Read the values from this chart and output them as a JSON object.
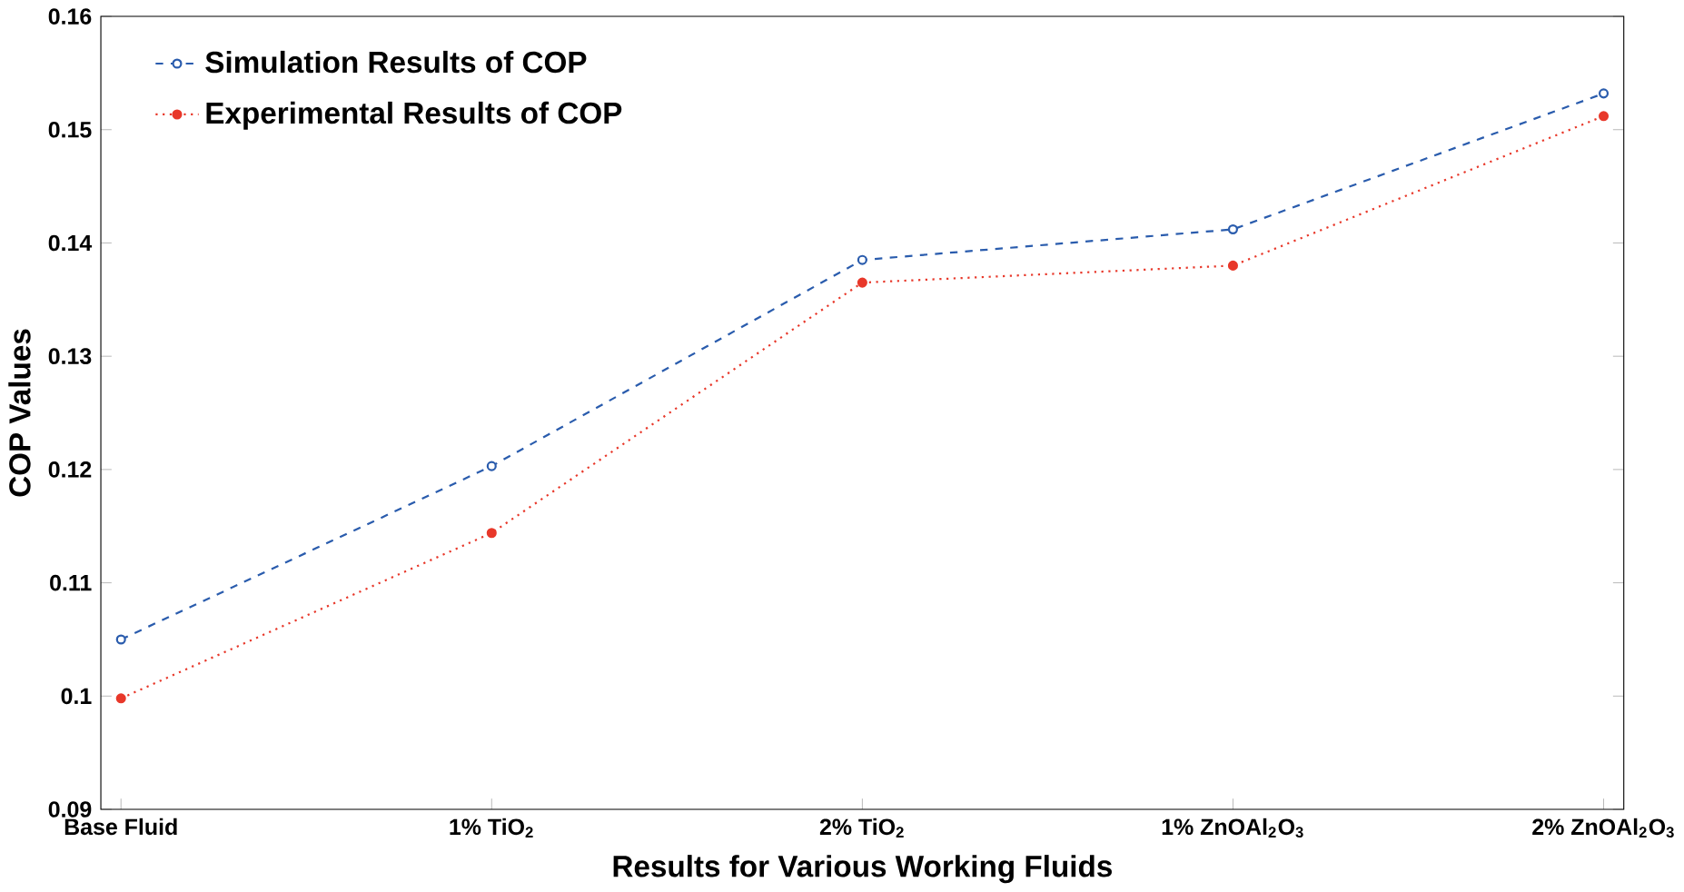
{
  "chart_data": {
    "type": "line",
    "xlabel": "Results for Various Working Fluids",
    "ylabel": "COP Values",
    "categories": [
      "Base Fluid",
      "1% TiO$_{2}$",
      "2% TiO$_{2}$",
      "1% ZnOAl$_{2}$O$_{3}$",
      "2% ZnOAl$_{2}$O$_{3}$"
    ],
    "series": [
      {
        "name": "Simulation Results of COP",
        "color": "#2a5cad",
        "values": [
          0.105,
          0.1203,
          0.1385,
          0.1412,
          0.1532
        ],
        "line_style": "dashed",
        "marker": "circle"
      },
      {
        "name": "Experimental Results of COP",
        "color": "#e8382a",
        "values": [
          0.0998,
          0.1144,
          0.1365,
          0.138,
          0.1512
        ],
        "line_style": "dotted",
        "marker": "circle"
      }
    ],
    "ylim": [
      0.09,
      0.16
    ],
    "yticks": [
      0.09,
      0.1,
      0.11,
      0.12,
      0.13,
      0.14,
      0.15,
      0.16
    ],
    "grid": false,
    "legend": "top left"
  }
}
